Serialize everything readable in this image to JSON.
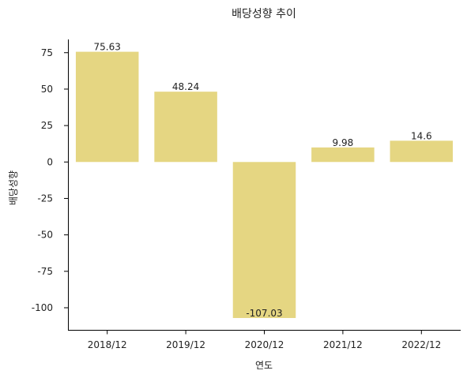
{
  "chart_data": {
    "type": "bar",
    "title": "배당성향 추이",
    "xlabel": "연도",
    "ylabel": "배당성향",
    "categories": [
      "2018/12",
      "2019/12",
      "2020/12",
      "2021/12",
      "2022/12"
    ],
    "values": [
      75.63,
      48.24,
      -107.03,
      9.98,
      14.6
    ],
    "value_labels": [
      "75.63",
      "48.24",
      "-107.03",
      "9.98",
      "14.6"
    ],
    "ylim": [
      -115.17,
      84.07
    ],
    "yticks": [
      75,
      50,
      25,
      0,
      -25,
      -50,
      -75,
      -100
    ],
    "ytick_labels": [
      "75",
      "50",
      "25",
      "0",
      "-25",
      "-50",
      "-75",
      "-100"
    ],
    "bar_color": "#e5d682",
    "grid": false,
    "legend": "none"
  }
}
